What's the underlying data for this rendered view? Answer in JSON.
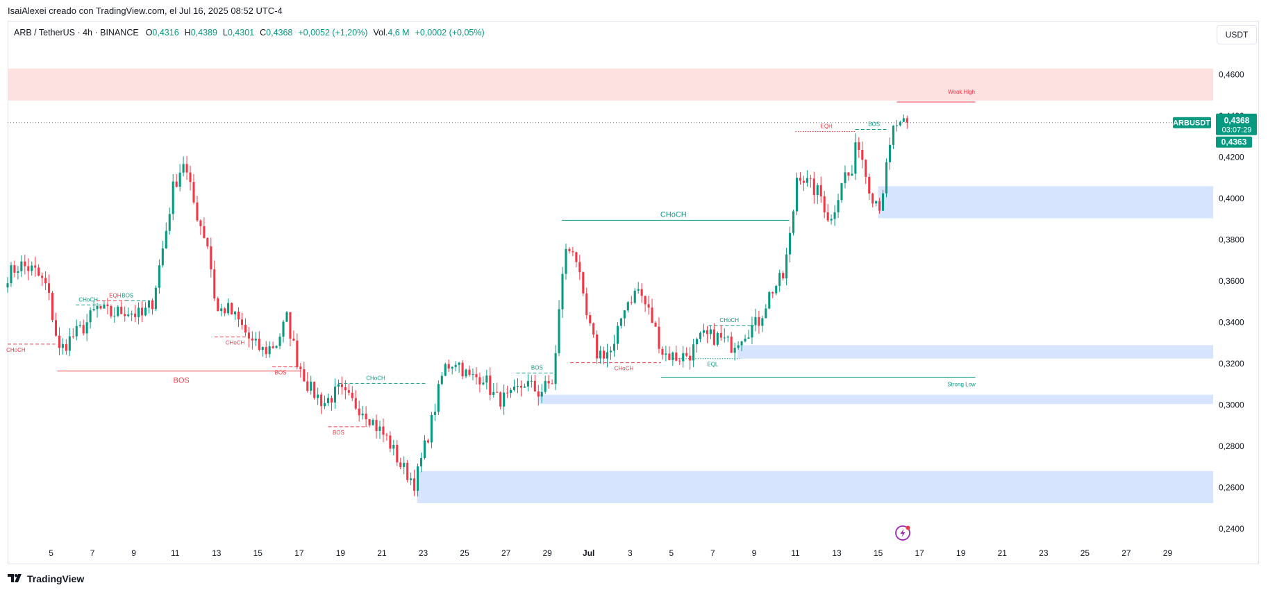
{
  "header": {
    "publisher_line": "IsaiAlexei creado con TradingView.com, el Jul 16, 2025 08:52 UTC-4"
  },
  "legend": {
    "symbol": "ARB / TetherUS · 4h · BINANCE",
    "open_label": "O",
    "open": "0,4316",
    "high_label": "H",
    "high": "0,4389",
    "low_label": "L",
    "low": "0,4301",
    "close_label": "C",
    "close": "0,4368",
    "change": "+0,0052 (+1,20%)",
    "vol_label": "Vol.",
    "vol": "4,6 M",
    "vol_change": "+0,0002 (+0,05%)"
  },
  "currency_button": "USDT",
  "brand": {
    "name": "TradingView"
  },
  "colors": {
    "up": "#089981",
    "down": "#f23645",
    "supply_zone": "#fde0e0",
    "demand_zone": "#d6e4fd",
    "price_line": "#089981"
  },
  "chart_data": {
    "type": "candlestick",
    "symbol": "ARBUSDT",
    "timeframe": "4h",
    "ylim": [
      0.234,
      0.472
    ],
    "y_ticks": [
      "0,4600",
      "0,4400",
      "0,4200",
      "0,4000",
      "0,3800",
      "0,3600",
      "0,3400",
      "0,3200",
      "0,3000",
      "0,2800",
      "0,2600",
      "0,2400"
    ],
    "y_tick_values": [
      0.46,
      0.44,
      0.42,
      0.4,
      0.38,
      0.36,
      0.34,
      0.32,
      0.3,
      0.28,
      0.26,
      0.24
    ],
    "x_ticks": [
      "5",
      "7",
      "9",
      "11",
      "13",
      "15",
      "17",
      "19",
      "21",
      "23",
      "25",
      "27",
      "29",
      "Jul",
      "3",
      "5",
      "7",
      "9",
      "11",
      "13",
      "15",
      "17",
      "19",
      "21",
      "23",
      "25",
      "27",
      "29"
    ],
    "x_tick_days": [
      5,
      7,
      9,
      11,
      13,
      15,
      17,
      19,
      21,
      23,
      25,
      27,
      29,
      31,
      33,
      35,
      37,
      39,
      41,
      43,
      45,
      47,
      49,
      51,
      53,
      55,
      57,
      59
    ],
    "x_start_day": 2.9,
    "x_end_day": 61.2,
    "current_price_label": "ARBUSDT",
    "current_price": "0,4368",
    "countdown": "03:07:29",
    "last_price": "0,4363",
    "price_line_value": 0.4368,
    "zones": [
      {
        "kind": "supply",
        "from_day": 2.9,
        "to_day": 61.2,
        "y_low": 0.4475,
        "y_high": 0.463
      },
      {
        "kind": "demand",
        "from_day": 45.0,
        "to_day": 61.2,
        "y_low": 0.3905,
        "y_high": 0.406
      },
      {
        "kind": "demand",
        "from_day": 38.2,
        "to_day": 61.2,
        "y_low": 0.3225,
        "y_high": 0.329
      },
      {
        "kind": "demand",
        "from_day": 28.6,
        "to_day": 61.2,
        "y_low": 0.3005,
        "y_high": 0.305
      },
      {
        "kind": "demand",
        "from_day": 22.7,
        "to_day": 61.2,
        "y_low": 0.2525,
        "y_high": 0.268
      }
    ],
    "structure_lines": [
      {
        "label": "CHoCH",
        "color": "down",
        "style": "dashed",
        "from_day": 2.9,
        "to_day": 5.2,
        "y": 0.3295,
        "label_day": 3.3,
        "label_side": "below"
      },
      {
        "label": "BOS",
        "color": "down",
        "style": "solid",
        "from_day": 5.3,
        "to_day": 17.1,
        "y": 0.3165,
        "label_day": 11.3,
        "label_side": "below"
      },
      {
        "label": "CHoCH",
        "color": "up",
        "style": "dashed",
        "from_day": 6.2,
        "to_day": 7.5,
        "y": 0.3485,
        "label_day": 6.8,
        "label_side": "above"
      },
      {
        "label": "EQH",
        "color": "down",
        "style": "dashed",
        "from_day": 7.2,
        "to_day": 8.8,
        "y": 0.3505,
        "label_day": 8.1,
        "label_side": "above"
      },
      {
        "label": "BOS",
        "color": "up",
        "style": "dashed",
        "from_day": 8.6,
        "to_day": 9.7,
        "y": 0.3505,
        "label_day": 8.7,
        "label_side": "above"
      },
      {
        "label": "CHoCH",
        "color": "down",
        "style": "dashed",
        "from_day": 12.9,
        "to_day": 14.4,
        "y": 0.333,
        "label_day": 13.9,
        "label_side": "below"
      },
      {
        "label": "BOS",
        "color": "down",
        "style": "dashed",
        "from_day": 15.7,
        "to_day": 17.0,
        "y": 0.3185,
        "label_day": 16.1,
        "label_side": "below"
      },
      {
        "label": "BOS",
        "color": "down",
        "style": "dashed",
        "from_day": 18.4,
        "to_day": 20.3,
        "y": 0.2895,
        "label_day": 18.9,
        "label_side": "below"
      },
      {
        "label": "CHoCH",
        "color": "up",
        "style": "dashed",
        "from_day": 18.9,
        "to_day": 23.2,
        "y": 0.3105,
        "label_day": 20.7,
        "label_side": "above"
      },
      {
        "label": "BOS",
        "color": "up",
        "style": "dashed",
        "from_day": 27.5,
        "to_day": 29.4,
        "y": 0.3155,
        "label_day": 28.5,
        "label_side": "above"
      },
      {
        "label": "CHoCH",
        "color": "up",
        "style": "solid",
        "from_day": 29.7,
        "to_day": 40.7,
        "y": 0.3895,
        "label_day": 35.1,
        "label_side": "above"
      },
      {
        "label": "CHoCH",
        "color": "down",
        "style": "dashed",
        "from_day": 30.1,
        "to_day": 34.5,
        "y": 0.3205,
        "label_day": 32.7,
        "label_side": "below"
      },
      {
        "label": "EQL",
        "color": "up",
        "style": "dotted",
        "from_day": 35.1,
        "to_day": 38.3,
        "y": 0.3225,
        "label_day": 37.0,
        "label_side": "below"
      },
      {
        "label": "CHoCH",
        "color": "up",
        "style": "dashed",
        "from_day": 36.8,
        "to_day": 39.0,
        "y": 0.3385,
        "label_day": 37.8,
        "label_side": "above"
      },
      {
        "label": "EQH",
        "color": "down",
        "style": "dotted",
        "from_day": 41.0,
        "to_day": 43.9,
        "y": 0.4325,
        "label_day": 42.5,
        "label_side": "above"
      },
      {
        "label": "BOS",
        "color": "up",
        "style": "dashed",
        "from_day": 43.9,
        "to_day": 45.4,
        "y": 0.4335,
        "label_day": 44.8,
        "label_side": "above"
      }
    ],
    "key_levels": [
      {
        "label": "Weak High",
        "color": "down",
        "from_day": 45.9,
        "to_day": 49.7,
        "y": 0.4468
      },
      {
        "label": "Strong Low",
        "color": "up",
        "from_day": 34.5,
        "to_day": 49.7,
        "y": 0.3135
      }
    ],
    "anchors": [
      [
        2.9,
        0.363
      ],
      [
        3.5,
        0.368
      ],
      [
        4.2,
        0.365
      ],
      [
        4.8,
        0.357
      ],
      [
        5.4,
        0.326
      ],
      [
        6.0,
        0.333
      ],
      [
        6.6,
        0.338
      ],
      [
        7.2,
        0.347
      ],
      [
        7.9,
        0.344
      ],
      [
        8.6,
        0.346
      ],
      [
        9.4,
        0.343
      ],
      [
        9.9,
        0.35
      ],
      [
        10.5,
        0.381
      ],
      [
        10.9,
        0.405
      ],
      [
        11.4,
        0.418
      ],
      [
        12.0,
        0.394
      ],
      [
        12.6,
        0.377
      ],
      [
        13.0,
        0.345
      ],
      [
        13.5,
        0.347
      ],
      [
        14.1,
        0.34
      ],
      [
        14.7,
        0.33
      ],
      [
        15.3,
        0.326
      ],
      [
        15.9,
        0.33
      ],
      [
        16.4,
        0.342
      ],
      [
        16.9,
        0.322
      ],
      [
        17.5,
        0.308
      ],
      [
        18.2,
        0.301
      ],
      [
        18.9,
        0.307
      ],
      [
        19.6,
        0.301
      ],
      [
        20.2,
        0.297
      ],
      [
        20.7,
        0.29
      ],
      [
        21.3,
        0.283
      ],
      [
        21.9,
        0.271
      ],
      [
        22.6,
        0.262
      ],
      [
        23.4,
        0.292
      ],
      [
        24.0,
        0.318
      ],
      [
        24.6,
        0.322
      ],
      [
        25.2,
        0.313
      ],
      [
        25.9,
        0.314
      ],
      [
        26.5,
        0.303
      ],
      [
        27.2,
        0.303
      ],
      [
        27.9,
        0.311
      ],
      [
        28.6,
        0.306
      ],
      [
        29.3,
        0.312
      ],
      [
        29.8,
        0.373
      ],
      [
        30.3,
        0.377
      ],
      [
        30.8,
        0.346
      ],
      [
        31.4,
        0.325
      ],
      [
        32.2,
        0.326
      ],
      [
        32.7,
        0.348
      ],
      [
        33.4,
        0.356
      ],
      [
        34.0,
        0.343
      ],
      [
        34.6,
        0.325
      ],
      [
        35.3,
        0.323
      ],
      [
        35.9,
        0.325
      ],
      [
        36.5,
        0.333
      ],
      [
        37.2,
        0.333
      ],
      [
        37.9,
        0.329
      ],
      [
        38.5,
        0.335
      ],
      [
        39.2,
        0.34
      ],
      [
        39.8,
        0.355
      ],
      [
        40.4,
        0.362
      ],
      [
        40.8,
        0.385
      ],
      [
        41.1,
        0.414
      ],
      [
        41.6,
        0.407
      ],
      [
        42.2,
        0.402
      ],
      [
        42.7,
        0.388
      ],
      [
        43.3,
        0.412
      ],
      [
        43.7,
        0.41
      ],
      [
        44.0,
        0.43
      ],
      [
        44.4,
        0.412
      ],
      [
        44.7,
        0.402
      ],
      [
        45.1,
        0.397
      ],
      [
        45.5,
        0.42
      ],
      [
        45.8,
        0.437
      ],
      [
        46.1,
        0.434
      ],
      [
        46.4,
        0.4368
      ]
    ]
  }
}
